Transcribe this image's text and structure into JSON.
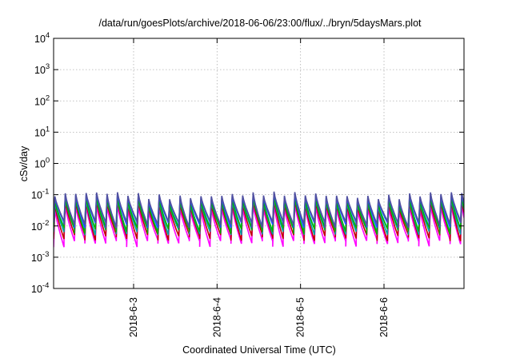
{
  "chart_data": {
    "type": "line",
    "title": "/data/run/goesPlots/archive/2018-06-06/23:00/flux/../bryn/5daysMars.plot",
    "xlabel": "Coordinated Universal Time (UTC)",
    "ylabel": "cSv/day",
    "yscale": "log",
    "ylim": [
      0.0001,
      10000
    ],
    "xlim": [
      "2018-06-02T01:00",
      "2018-06-06T23:00"
    ],
    "y_ticks": [
      {
        "base": "10",
        "exp": "-4",
        "value": 0.0001
      },
      {
        "base": "10",
        "exp": "-3",
        "value": 0.001
      },
      {
        "base": "10",
        "exp": "-2",
        "value": 0.01
      },
      {
        "base": "10",
        "exp": "-1",
        "value": 0.1
      },
      {
        "base": "10",
        "exp": "0",
        "value": 1
      },
      {
        "base": "10",
        "exp": "1",
        "value": 10
      },
      {
        "base": "10",
        "exp": "2",
        "value": 100
      },
      {
        "base": "10",
        "exp": "3",
        "value": 1000
      },
      {
        "base": "10",
        "exp": "4",
        "value": 10000
      }
    ],
    "x_ticks": [
      {
        "label": "2018-6-3",
        "value": "2018-06-03T00:00"
      },
      {
        "label": "2018-6-4",
        "value": "2018-06-04T00:00"
      },
      {
        "label": "2018-6-5",
        "value": "2018-06-05T00:00"
      },
      {
        "label": "2018-6-6",
        "value": "2018-06-06T00:00"
      }
    ],
    "grid": true,
    "legend": "none",
    "cycle_hours": 3,
    "series": [
      {
        "color": "#ff00ff",
        "low": 0.003,
        "high": 0.04
      },
      {
        "color": "#c00000",
        "low": 0.0045,
        "high": 0.055
      },
      {
        "color": "#00a0a0",
        "low": 0.0065,
        "high": 0.065
      },
      {
        "color": "#40e0d0",
        "low": 0.009,
        "high": 0.075
      },
      {
        "color": "#00b000",
        "low": 0.0075,
        "high": 0.07
      },
      {
        "color": "#2050ff",
        "low": 0.011,
        "high": 0.09
      },
      {
        "color": "#5050a0",
        "low": 0.012,
        "high": 0.1
      }
    ]
  }
}
